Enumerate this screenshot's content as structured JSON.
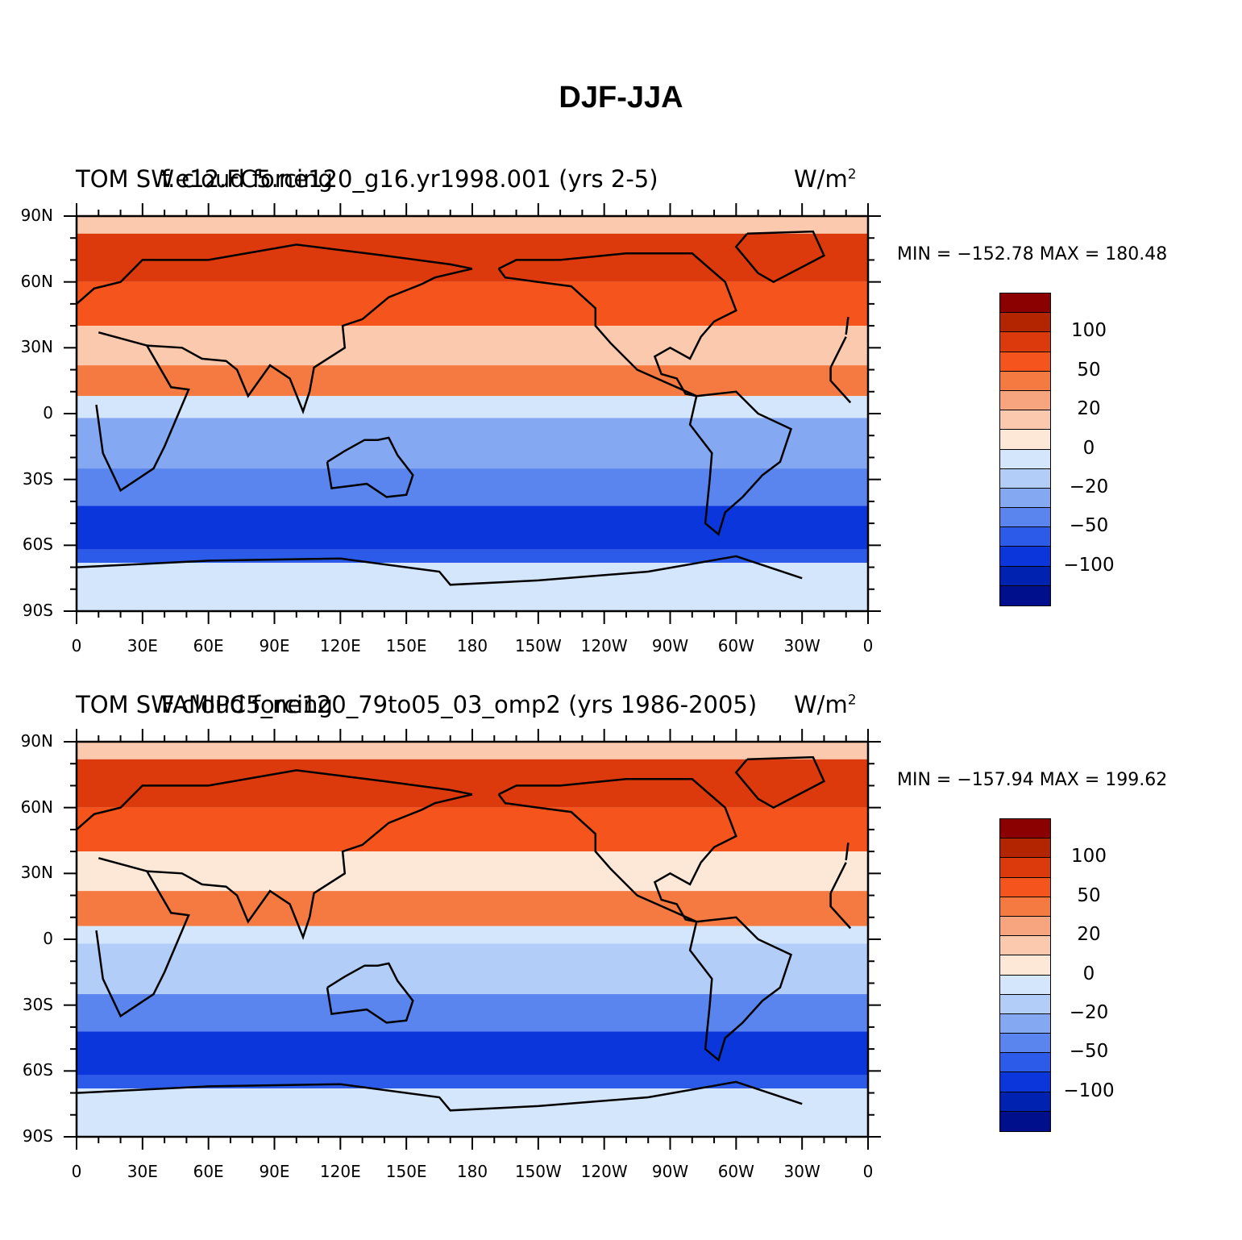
{
  "title": "DJF-JJA",
  "panels": [
    {
      "variable_label": "TOM  SW cloud forcing",
      "case_label": "f.e12.FC5.ne120_g16.yr1998.001 (yrs 2-5)",
      "units": "W/m",
      "units_exp": "2",
      "stats": "MIN = −152.78  MAX = 180.48"
    },
    {
      "variable_label": "TOM  SW cloud forcing",
      "case_label": "FAMIPC5_ne120_79to05_03_omp2 (yrs 1986-2005)",
      "units": "W/m",
      "units_exp": "2",
      "stats": "MIN = −157.94  MAX = 199.62"
    }
  ],
  "axes": {
    "x_ticks": [
      "0",
      "30E",
      "60E",
      "90E",
      "120E",
      "150E",
      "180",
      "150W",
      "120W",
      "90W",
      "60W",
      "30W",
      "0"
    ],
    "y_ticks": [
      "90N",
      "60N",
      "30N",
      "0",
      "30S",
      "60S",
      "90S"
    ]
  },
  "colorbar": {
    "labels": [
      "100",
      "50",
      "20",
      "0",
      "−20",
      "−50",
      "−100"
    ],
    "colors": [
      "#8b0000",
      "#b32400",
      "#dc3a0c",
      "#f5541c",
      "#f57a42",
      "#f7a57f",
      "#fbc9ad",
      "#fde8d8",
      "#d4e6fb",
      "#b2cdf8",
      "#85a8f2",
      "#5a84ee",
      "#2c5bea",
      "#0b36db",
      "#0022b0",
      "#00108c"
    ]
  }
}
